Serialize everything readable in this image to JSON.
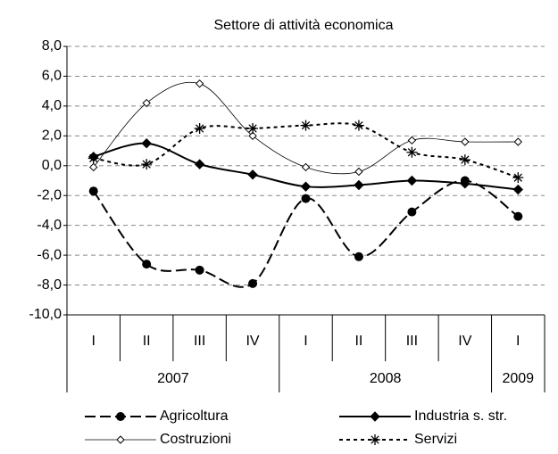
{
  "chart_data": {
    "type": "line",
    "title": "Settore di attività economica",
    "categories": [
      "I",
      "II",
      "III",
      "IV",
      "I",
      "II",
      "III",
      "IV",
      "I"
    ],
    "groups": [
      {
        "name": "2007",
        "count": 4
      },
      {
        "name": "2008",
        "count": 4
      },
      {
        "name": "2009",
        "count": 1
      }
    ],
    "series": [
      {
        "name": "Agricoltura",
        "color": "#000000",
        "marker": "circle",
        "dash": "12,5",
        "width": 2,
        "values": [
          -1.7,
          -6.6,
          -7.0,
          -7.9,
          -2.2,
          -6.1,
          -3.1,
          -1.0,
          -3.4
        ]
      },
      {
        "name": "Industria s. str.",
        "color": "#000000",
        "marker": "diamond",
        "dash": "none",
        "width": 2,
        "values": [
          0.6,
          1.5,
          0.1,
          -0.6,
          -1.4,
          -1.3,
          -1.0,
          -1.2,
          -1.6
        ]
      },
      {
        "name": "Costruzioni",
        "color": "#000000",
        "marker": "open-diamond",
        "dash": "none",
        "width": 0.8,
        "values": [
          -0.1,
          4.2,
          5.5,
          2.0,
          -0.1,
          -0.4,
          1.7,
          1.6,
          1.6
        ]
      },
      {
        "name": "Servizi",
        "color": "#000000",
        "marker": "asterisk",
        "dash": "4,4",
        "width": 2,
        "values": [
          0.5,
          0.1,
          2.5,
          2.5,
          2.7,
          2.7,
          0.9,
          0.4,
          -0.8
        ]
      }
    ],
    "ylim": [
      -10,
      8
    ],
    "yticks": [
      {
        "value": -10,
        "label": "-10,0"
      },
      {
        "value": -8,
        "label": "-8,0"
      },
      {
        "value": -6,
        "label": "-6,0"
      },
      {
        "value": -4,
        "label": "-4,0"
      },
      {
        "value": -2,
        "label": "-2,0"
      },
      {
        "value": 0,
        "label": "0,0"
      },
      {
        "value": 2,
        "label": "2,0"
      },
      {
        "value": 4,
        "label": "4,0"
      },
      {
        "value": 6,
        "label": "6,0"
      },
      {
        "value": 8,
        "label": "8,0"
      }
    ],
    "grid": true,
    "legend": "bottom"
  }
}
